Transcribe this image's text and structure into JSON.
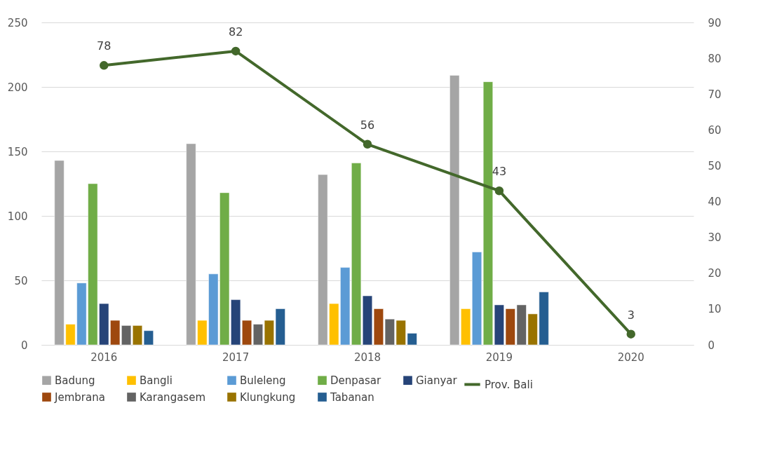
{
  "chart_data": {
    "type": "bar",
    "categories": [
      "2016",
      "2017",
      "2018",
      "2019",
      "2020"
    ],
    "series": [
      {
        "name": "Badung",
        "color": "#a5a5a5",
        "values": [
          143,
          156,
          132,
          209,
          null
        ]
      },
      {
        "name": "Bangli",
        "color": "#ffc000",
        "values": [
          16,
          19,
          32,
          28,
          null
        ]
      },
      {
        "name": "Buleleng",
        "color": "#5b9bd5",
        "values": [
          48,
          55,
          60,
          72,
          null
        ]
      },
      {
        "name": "Denpasar",
        "color": "#70ad47",
        "values": [
          125,
          118,
          141,
          204,
          null
        ]
      },
      {
        "name": "Gianyar",
        "color": "#264478",
        "values": [
          32,
          35,
          38,
          31,
          null
        ]
      },
      {
        "name": "Jembrana",
        "color": "#9e480e",
        "values": [
          19,
          19,
          28,
          28,
          null
        ]
      },
      {
        "name": "Karangasem",
        "color": "#636363",
        "values": [
          15,
          16,
          20,
          31,
          null
        ]
      },
      {
        "name": "Klungkung",
        "color": "#997300",
        "values": [
          15,
          19,
          19,
          24,
          null
        ]
      },
      {
        "name": "Tabanan",
        "color": "#255e91",
        "values": [
          11,
          28,
          9,
          41,
          null
        ]
      },
      {
        "name": "Prov. Bali",
        "color": "#43682b",
        "type": "line",
        "axis": "y2",
        "marker": "circle",
        "values": [
          78,
          82,
          56,
          43,
          3
        ],
        "value_labels": [
          "78",
          "82",
          "56",
          "43",
          "3"
        ]
      }
    ],
    "ylim": [
      0,
      250
    ],
    "yticks": [
      0,
      50,
      100,
      150,
      200,
      250
    ],
    "y2lim": [
      0,
      90
    ],
    "y2ticks": [
      0,
      10,
      20,
      30,
      40,
      50,
      60,
      70,
      80,
      90
    ],
    "grid": "y",
    "legend": "bottom"
  }
}
